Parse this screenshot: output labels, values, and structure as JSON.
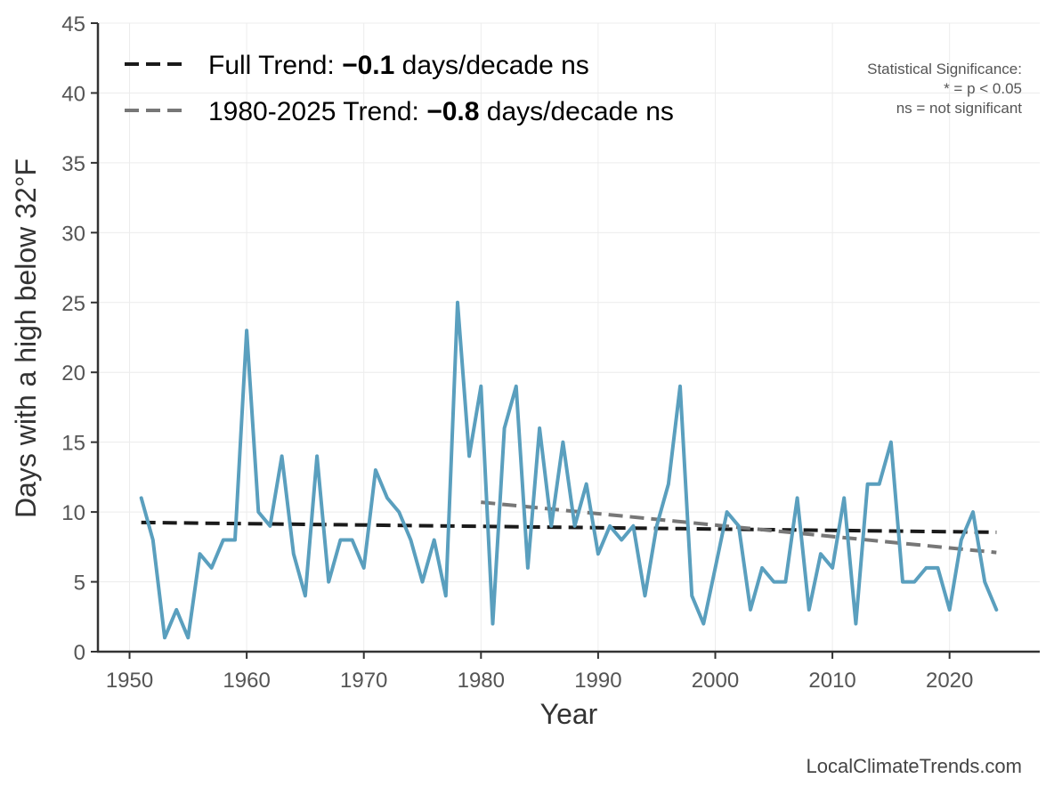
{
  "chart_data": {
    "type": "line",
    "xlabel": "Year",
    "ylabel": "Days with a high below 32°F",
    "xlim": [
      1947.3,
      2027.7
    ],
    "ylim": [
      0,
      45
    ],
    "xticks": [
      1950,
      1960,
      1970,
      1980,
      1990,
      2000,
      2010,
      2020
    ],
    "yticks": [
      0,
      5,
      10,
      15,
      20,
      25,
      30,
      35,
      40,
      45
    ],
    "grid": true,
    "series": [
      {
        "name": "Days with a high below 32°F",
        "color": "#5a9fbe",
        "x": [
          1951,
          1952,
          1953,
          1954,
          1955,
          1956,
          1957,
          1958,
          1959,
          1960,
          1961,
          1962,
          1963,
          1964,
          1965,
          1966,
          1967,
          1968,
          1969,
          1970,
          1971,
          1972,
          1973,
          1974,
          1975,
          1976,
          1977,
          1978,
          1979,
          1980,
          1981,
          1982,
          1983,
          1984,
          1985,
          1986,
          1987,
          1988,
          1989,
          1990,
          1991,
          1992,
          1993,
          1994,
          1995,
          1996,
          1997,
          1998,
          1999,
          2000,
          2001,
          2002,
          2003,
          2004,
          2005,
          2006,
          2007,
          2008,
          2009,
          2010,
          2011,
          2012,
          2013,
          2014,
          2015,
          2016,
          2017,
          2018,
          2019,
          2020,
          2021,
          2022,
          2023,
          2024
        ],
        "values": [
          11,
          8,
          1,
          3,
          1,
          7,
          6,
          8,
          8,
          23,
          10,
          9,
          14,
          7,
          4,
          14,
          5,
          8,
          8,
          6,
          13,
          11,
          10,
          8,
          5,
          8,
          4,
          25,
          14,
          19,
          2,
          16,
          19,
          6,
          16,
          9,
          15,
          9,
          12,
          7,
          9,
          8,
          9,
          4,
          9,
          12,
          19,
          4,
          2,
          6,
          10,
          9,
          3,
          6,
          5,
          5,
          11,
          3,
          7,
          6,
          11,
          2,
          12,
          12,
          15,
          5,
          5,
          6,
          6,
          3,
          8,
          10,
          5,
          3
        ]
      }
    ],
    "trends": [
      {
        "name": "Full Trend",
        "label_prefix": "Full Trend: ",
        "slope_label": "−0.1",
        "label_suffix": " days/decade ns",
        "color": "#1a1a1a",
        "x": [
          1951,
          2024
        ],
        "y": [
          9.25,
          8.55
        ]
      },
      {
        "name": "1980-2025 Trend",
        "label_prefix": "1980-2025 Trend: ",
        "slope_label": "−0.8",
        "label_suffix": " days/decade ns",
        "color": "#777777",
        "x": [
          1980,
          2024
        ],
        "y": [
          10.7,
          7.1
        ]
      }
    ],
    "annotations": {
      "significance_title": "Statistical Significance:",
      "significance_line1": "* = p < 0.05",
      "significance_line2": "ns = not significant"
    },
    "credit": "LocalClimateTrends.com"
  }
}
